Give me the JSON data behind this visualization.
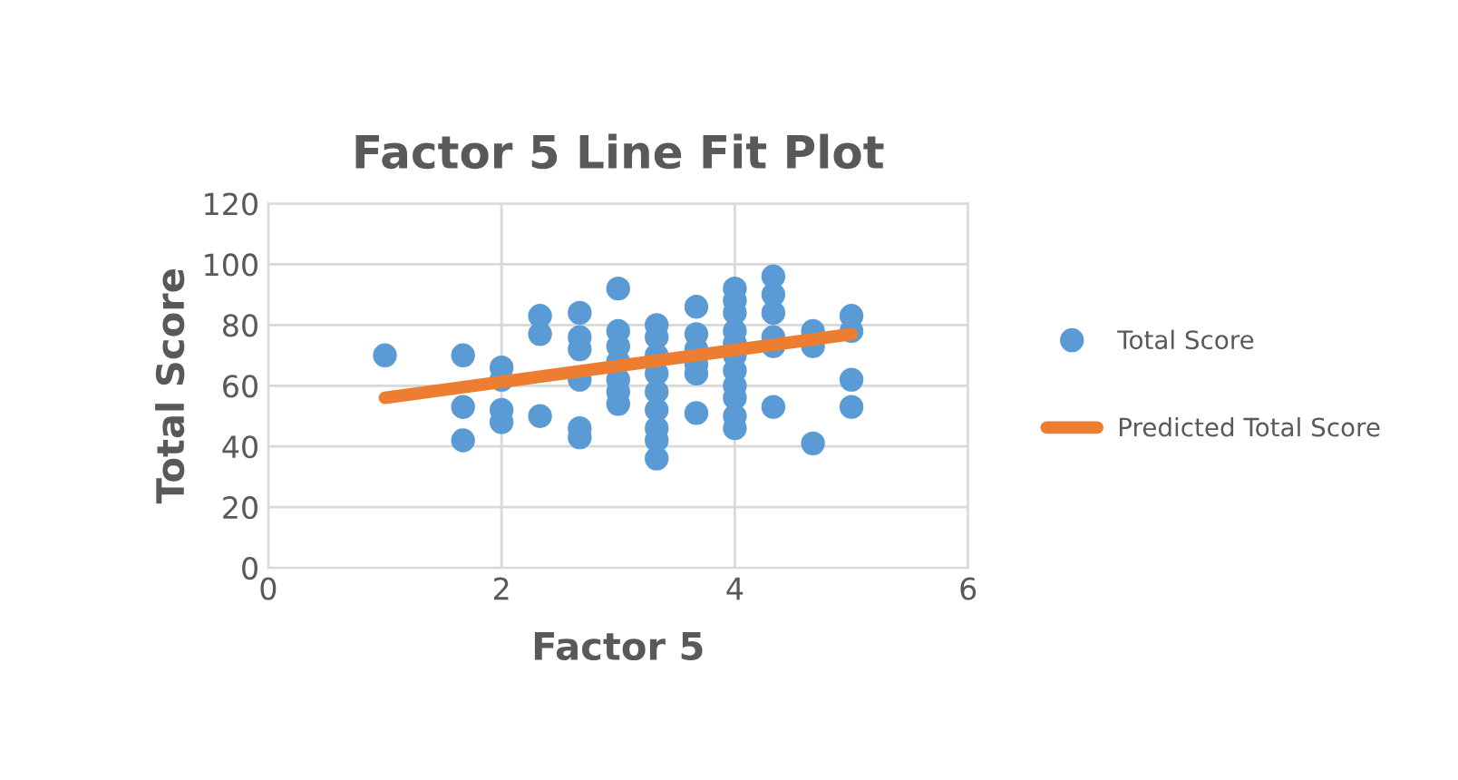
{
  "chart_data": {
    "type": "scatter",
    "title": "Factor 5 Line Fit Plot",
    "xlabel": "Factor 5",
    "ylabel": "Total Score",
    "xlim": [
      0,
      6
    ],
    "xticks": [
      0,
      2,
      4,
      6
    ],
    "ylim": [
      0,
      120
    ],
    "yticks": [
      0,
      20,
      40,
      60,
      80,
      100,
      120
    ],
    "grid": true,
    "legend": "right",
    "series": [
      {
        "name": "Total Score",
        "marker": "circle",
        "color": "#5b9bd5",
        "x": [
          1,
          1.67,
          1.67,
          1.67,
          2,
          2,
          2,
          2,
          2.33,
          2.33,
          2.33,
          2.67,
          2.67,
          2.67,
          2.67,
          2.67,
          2.67,
          3,
          3,
          3,
          3,
          3,
          3,
          3,
          3.33,
          3.33,
          3.33,
          3.33,
          3.33,
          3.33,
          3.33,
          3.33,
          3.33,
          3.67,
          3.67,
          3.67,
          3.67,
          3.67,
          3.67,
          4,
          4,
          4,
          4,
          4,
          4,
          4,
          4,
          4,
          4,
          4,
          4.33,
          4.33,
          4.33,
          4.33,
          4.33,
          4.33,
          4.67,
          4.67,
          4.67,
          5,
          5,
          5,
          5
        ],
        "values": [
          70,
          70,
          53,
          42,
          66,
          62,
          52,
          48,
          83,
          77,
          50,
          84,
          76,
          72,
          62,
          46,
          43,
          92,
          78,
          73,
          68,
          62,
          58,
          54,
          80,
          76,
          70,
          64,
          58,
          52,
          46,
          42,
          36,
          86,
          77,
          72,
          67,
          64,
          51,
          92,
          88,
          84,
          78,
          74,
          70,
          65,
          60,
          56,
          50,
          46,
          96,
          90,
          84,
          76,
          73,
          53,
          78,
          73,
          41,
          83,
          78,
          62,
          53
        ]
      },
      {
        "name": "Predicted Total Score",
        "type": "line",
        "color": "#ed7d31",
        "x": [
          1,
          5
        ],
        "values": [
          56,
          77
        ]
      }
    ]
  }
}
